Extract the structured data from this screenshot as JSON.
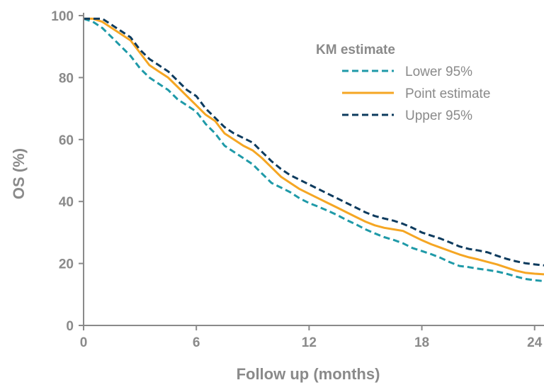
{
  "chart_data": {
    "type": "line",
    "title": "",
    "xlabel": "Follow up (months)",
    "ylabel": "OS (%)",
    "xlim": [
      0,
      24.5
    ],
    "ylim": [
      0,
      100
    ],
    "xticks": [
      0,
      6,
      12,
      18,
      24
    ],
    "yticks": [
      0,
      20,
      40,
      60,
      80,
      100
    ],
    "grid": false,
    "legend": {
      "title": "KM estimate",
      "placement": "top-right"
    },
    "series": [
      {
        "name": "Lower 95%",
        "color": "#1f9aa8",
        "dash": "dashed",
        "x": [
          0,
          0.5,
          1,
          1.5,
          2,
          2.5,
          3,
          3.5,
          4,
          4.5,
          5,
          5.5,
          6,
          6.5,
          7,
          7.5,
          8,
          8.5,
          9,
          9.5,
          10,
          10.5,
          11,
          11.5,
          12,
          12.5,
          13,
          13.5,
          14,
          14.5,
          15,
          15.5,
          16,
          16.5,
          17,
          17.5,
          18,
          18.5,
          19,
          19.5,
          20,
          20.5,
          21,
          21.5,
          22,
          22.5,
          23,
          23.5,
          24,
          24.5
        ],
        "y": [
          99,
          98,
          96,
          93,
          90,
          87,
          83,
          80,
          78,
          76,
          73,
          71,
          69,
          65,
          62,
          58,
          56,
          54,
          52,
          49,
          46,
          44.5,
          43,
          41,
          39.5,
          38.3,
          37,
          35.6,
          34,
          32.6,
          31,
          29.7,
          28.5,
          27.6,
          26.5,
          25,
          24,
          23,
          21.8,
          20.4,
          19.2,
          18.8,
          18.3,
          17.9,
          17.4,
          16.7,
          15.8,
          15,
          14.6,
          14.3
        ]
      },
      {
        "name": "Point estimate",
        "color": "#f5a623",
        "dash": "solid",
        "x": [
          0,
          0.5,
          1,
          1.5,
          2,
          2.5,
          3,
          3.5,
          4,
          4.5,
          5,
          5.5,
          6,
          6.5,
          7,
          7.5,
          8,
          8.5,
          9,
          9.5,
          10,
          10.5,
          11,
          11.5,
          12,
          12.5,
          13,
          13.5,
          14,
          14.5,
          15,
          15.5,
          16,
          16.5,
          17,
          17.5,
          18,
          18.5,
          19,
          19.5,
          20,
          20.5,
          21,
          21.5,
          22,
          22.5,
          23,
          23.5,
          24,
          24.5
        ],
        "y": [
          99,
          99,
          98,
          96,
          94,
          92,
          88,
          84,
          82,
          80,
          77,
          74,
          71,
          68,
          66,
          62,
          60,
          58,
          56.5,
          54,
          51,
          48,
          46,
          44,
          42.5,
          41,
          39.5,
          38,
          36.5,
          35,
          33.5,
          32.3,
          31.5,
          31,
          30.5,
          29,
          27.5,
          26.2,
          25.1,
          24,
          22.9,
          22,
          21.3,
          20.5,
          19.7,
          18.7,
          17.7,
          17,
          16.7,
          16.5
        ]
      },
      {
        "name": "Upper 95%",
        "color": "#0d3b5e",
        "dash": "dashed",
        "x": [
          0,
          0.5,
          1,
          1.5,
          2,
          2.5,
          3,
          3.5,
          4,
          4.5,
          5,
          5.5,
          6,
          6.5,
          7,
          7.5,
          8,
          8.5,
          9,
          9.5,
          10,
          10.5,
          11,
          11.5,
          12,
          12.5,
          13,
          13.5,
          14,
          14.5,
          15,
          15.5,
          16,
          16.5,
          17,
          17.5,
          18,
          18.5,
          19,
          19.5,
          20,
          20.5,
          21,
          21.5,
          22,
          22.5,
          23,
          23.5,
          24,
          24.5
        ],
        "y": [
          99,
          99,
          99,
          97,
          95,
          93,
          89,
          86,
          84,
          82,
          79,
          76,
          74,
          70,
          67,
          64,
          62,
          60.5,
          59,
          56,
          53,
          50.5,
          48.5,
          47,
          45.5,
          44,
          42.5,
          41,
          39.5,
          38,
          36.5,
          35.3,
          34.5,
          33.8,
          32.8,
          31.5,
          30,
          29,
          28,
          26.8,
          25.5,
          24.7,
          24.2,
          23.6,
          22.5,
          21.5,
          20.7,
          20.1,
          19.7,
          19.4
        ]
      }
    ]
  }
}
